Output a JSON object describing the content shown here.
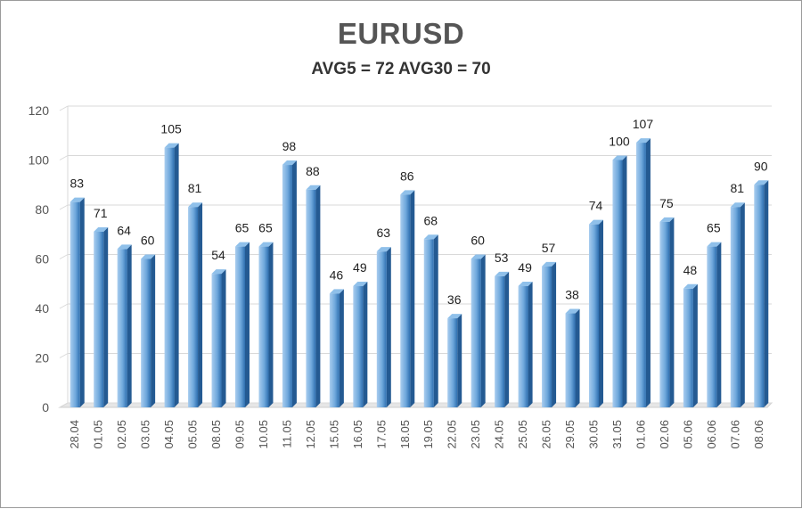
{
  "chart_data": {
    "type": "bar",
    "title": "EURUSD",
    "subtitle": "AVG5 = 72 AVG30 = 70",
    "xlabel": "",
    "ylabel": "",
    "ylim": [
      0,
      120
    ],
    "yticks": [
      0,
      20,
      40,
      60,
      80,
      100,
      120
    ],
    "grid": true,
    "categories": [
      "28.04",
      "01.05",
      "02.05",
      "03.05",
      "04.05",
      "05.05",
      "08.05",
      "09.05",
      "10.05",
      "11.05",
      "12.05",
      "15.05",
      "16.05",
      "17.05",
      "18.05",
      "19.05",
      "22.05",
      "23.05",
      "24.05",
      "25.05",
      "26.05",
      "29.05",
      "30.05",
      "31.05",
      "01.06",
      "02.06",
      "05.06",
      "06.06",
      "07.06",
      "08.06"
    ],
    "values": [
      83,
      71,
      64,
      60,
      105,
      81,
      54,
      65,
      65,
      98,
      88,
      46,
      49,
      63,
      86,
      68,
      36,
      60,
      53,
      49,
      57,
      38,
      74,
      100,
      107,
      75,
      48,
      65,
      81,
      90
    ],
    "colors": {
      "bar": "#6fa8dc",
      "bar_dark": "#2e6fb0",
      "bar_light": "#a9cdef",
      "grid": "#d9d9d9"
    }
  }
}
